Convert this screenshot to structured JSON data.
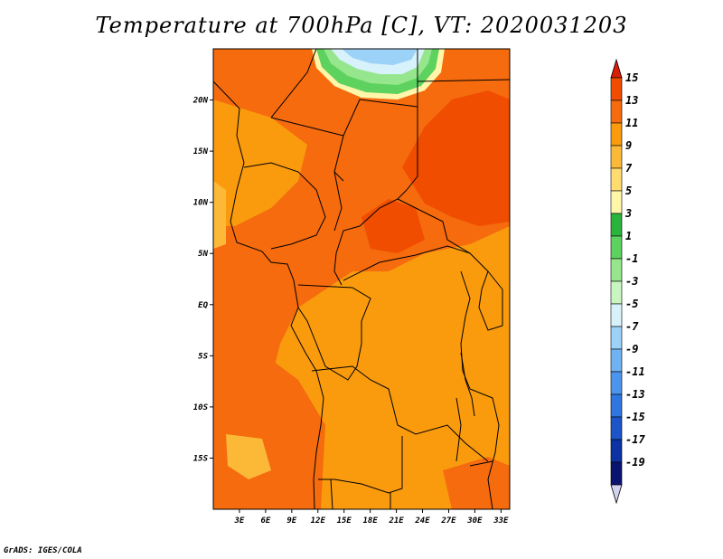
{
  "title": "Temperature at 700hPa [C], VT: 2020031203",
  "credit": "GrADS: IGES/COLA",
  "map": {
    "lat_labels": [
      {
        "lat": 20,
        "label": "20N"
      },
      {
        "lat": 15,
        "label": "15N"
      },
      {
        "lat": 10,
        "label": "10N"
      },
      {
        "lat": 5,
        "label": "5N"
      },
      {
        "lat": 0,
        "label": "EQ"
      },
      {
        "lat": -5,
        "label": "5S"
      },
      {
        "lat": -10,
        "label": "10S"
      },
      {
        "lat": -15,
        "label": "15S"
      }
    ],
    "lon_labels": [
      {
        "lon": 3,
        "label": "3E"
      },
      {
        "lon": 6,
        "label": "6E"
      },
      {
        "lon": 9,
        "label": "9E"
      },
      {
        "lon": 12,
        "label": "12E"
      },
      {
        "lon": 15,
        "label": "15E"
      },
      {
        "lon": 18,
        "label": "18E"
      },
      {
        "lon": 21,
        "label": "21E"
      },
      {
        "lon": 24,
        "label": "24E"
      },
      {
        "lon": 27,
        "label": "27E"
      },
      {
        "lon": 30,
        "label": "30E"
      },
      {
        "lon": 33,
        "label": "33E"
      }
    ],
    "lat_range": [
      -20,
      25
    ],
    "lon_range": [
      0,
      34
    ]
  },
  "colorbar": {
    "levels": [
      "15",
      "13",
      "11",
      "9",
      "7",
      "5",
      "3",
      "1",
      "-1",
      "-3",
      "-5",
      "-7",
      "-9",
      "-11",
      "-13",
      "-15",
      "-17",
      "-19"
    ],
    "colors": [
      "#d81e05",
      "#f04d00",
      "#f56b0e",
      "#fa9b0e",
      "#fcb937",
      "#fedc6f",
      "#fff6aa",
      "#2ab43c",
      "#5ed25e",
      "#95e68c",
      "#c9f5c1",
      "#d8f2fb",
      "#9cd2f7",
      "#6fb3f2",
      "#4c95ec",
      "#2f76e0",
      "#1b55c8",
      "#0c32a4",
      "#0a1470",
      "#d2d2f0"
    ]
  }
}
